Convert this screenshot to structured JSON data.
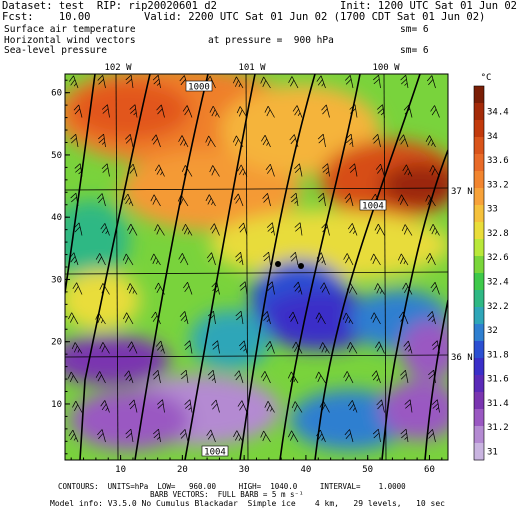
{
  "header": {
    "line1_left": "Dataset: test  RIP: rip20020601 d2",
    "line1_right": "Init: 1200 UTC Sat 01 Jun 02",
    "line2_left": "Fcst:    10.00",
    "line2_right": "Valid: 2200 UTC Sat 01 Jun 02 (1700 CDT Sat 01 Jun 02)",
    "line3_left": "Surface air temperature",
    "line3_right": "sm= 6",
    "line4_left": "Horizontal wind vectors",
    "line4_mid": "at pressure =  900 hPa",
    "line5_left": "Sea-level pressure",
    "line5_right": "sm= 6"
  },
  "map": {
    "longitude_labels": [
      "102 W",
      "101 W",
      "100 W"
    ],
    "latitude_labels": [
      "37 N",
      "36 N"
    ],
    "y_ticks": [
      "60",
      "50",
      "40",
      "30",
      "20",
      "10"
    ],
    "x_ticks": [
      "10",
      "20",
      "30",
      "40",
      "50",
      "60"
    ],
    "pressure_labels": [
      "1000",
      "1004",
      "1004"
    ]
  },
  "colorbar": {
    "unit": "°C",
    "labels": [
      "34.4",
      "34",
      "33.6",
      "33.2",
      "33",
      "32.8",
      "32.6",
      "32.4",
      "32.2",
      "32",
      "31.8",
      "31.6",
      "31.4",
      "31.2",
      "31"
    ],
    "colors": [
      "#7a1e06",
      "#a32a08",
      "#c23a0c",
      "#d9541a",
      "#e86a28",
      "#f2852f",
      "#f7a23a",
      "#f5c13c",
      "#e9dd3a",
      "#b9e83a",
      "#7ad63a",
      "#3ec94a",
      "#2fb884",
      "#2fa6b8",
      "#2f7fd0",
      "#2b4fd2",
      "#3a2fc8",
      "#5a2ab8",
      "#7a35b0",
      "#9a58c2",
      "#b48ad2",
      "#c9b4e0"
    ]
  },
  "footer": {
    "line1": "CONTOURS:  UNITS=hPa  LOW=   960.00     HIGH=  1040.0     INTERVAL=    1.0000",
    "line2": "BARB VECTORS:  FULL BARB = 5 m s⁻¹",
    "line3": "Model info: V3.5.0 No Cumulus Blackadar  Simple ice    4 km,   29 levels,   10 sec"
  }
}
